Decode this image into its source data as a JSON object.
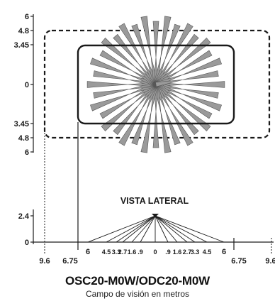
{
  "top_view": {
    "y_ticks_upper": [
      "6",
      "4.8",
      "3.45"
    ],
    "y_tick_zero": "0",
    "y_ticks_lower": [
      "3.45",
      "4.8",
      "6"
    ]
  },
  "side_view": {
    "title": "VISTA LATERAL",
    "y_ticks": [
      "2.4",
      "0"
    ],
    "x_tick_labels": [
      "6",
      "4.5",
      "3.3",
      "2.7",
      "1.6",
      ".9",
      "0",
      ".9",
      "1.6",
      "2.7",
      "3.3",
      "4.5",
      "6"
    ],
    "x_outer_labels": [
      "9.6",
      "6.75",
      "6.75",
      "9.6"
    ]
  },
  "caption": {
    "model": "OSC20-M0W/ODC20-M0W",
    "subtitle": "Campo de visión en metros"
  },
  "colors": {
    "ray_fill": "#9a9a9a",
    "ray_stroke": "#555555",
    "line": "#1a1a1a"
  }
}
